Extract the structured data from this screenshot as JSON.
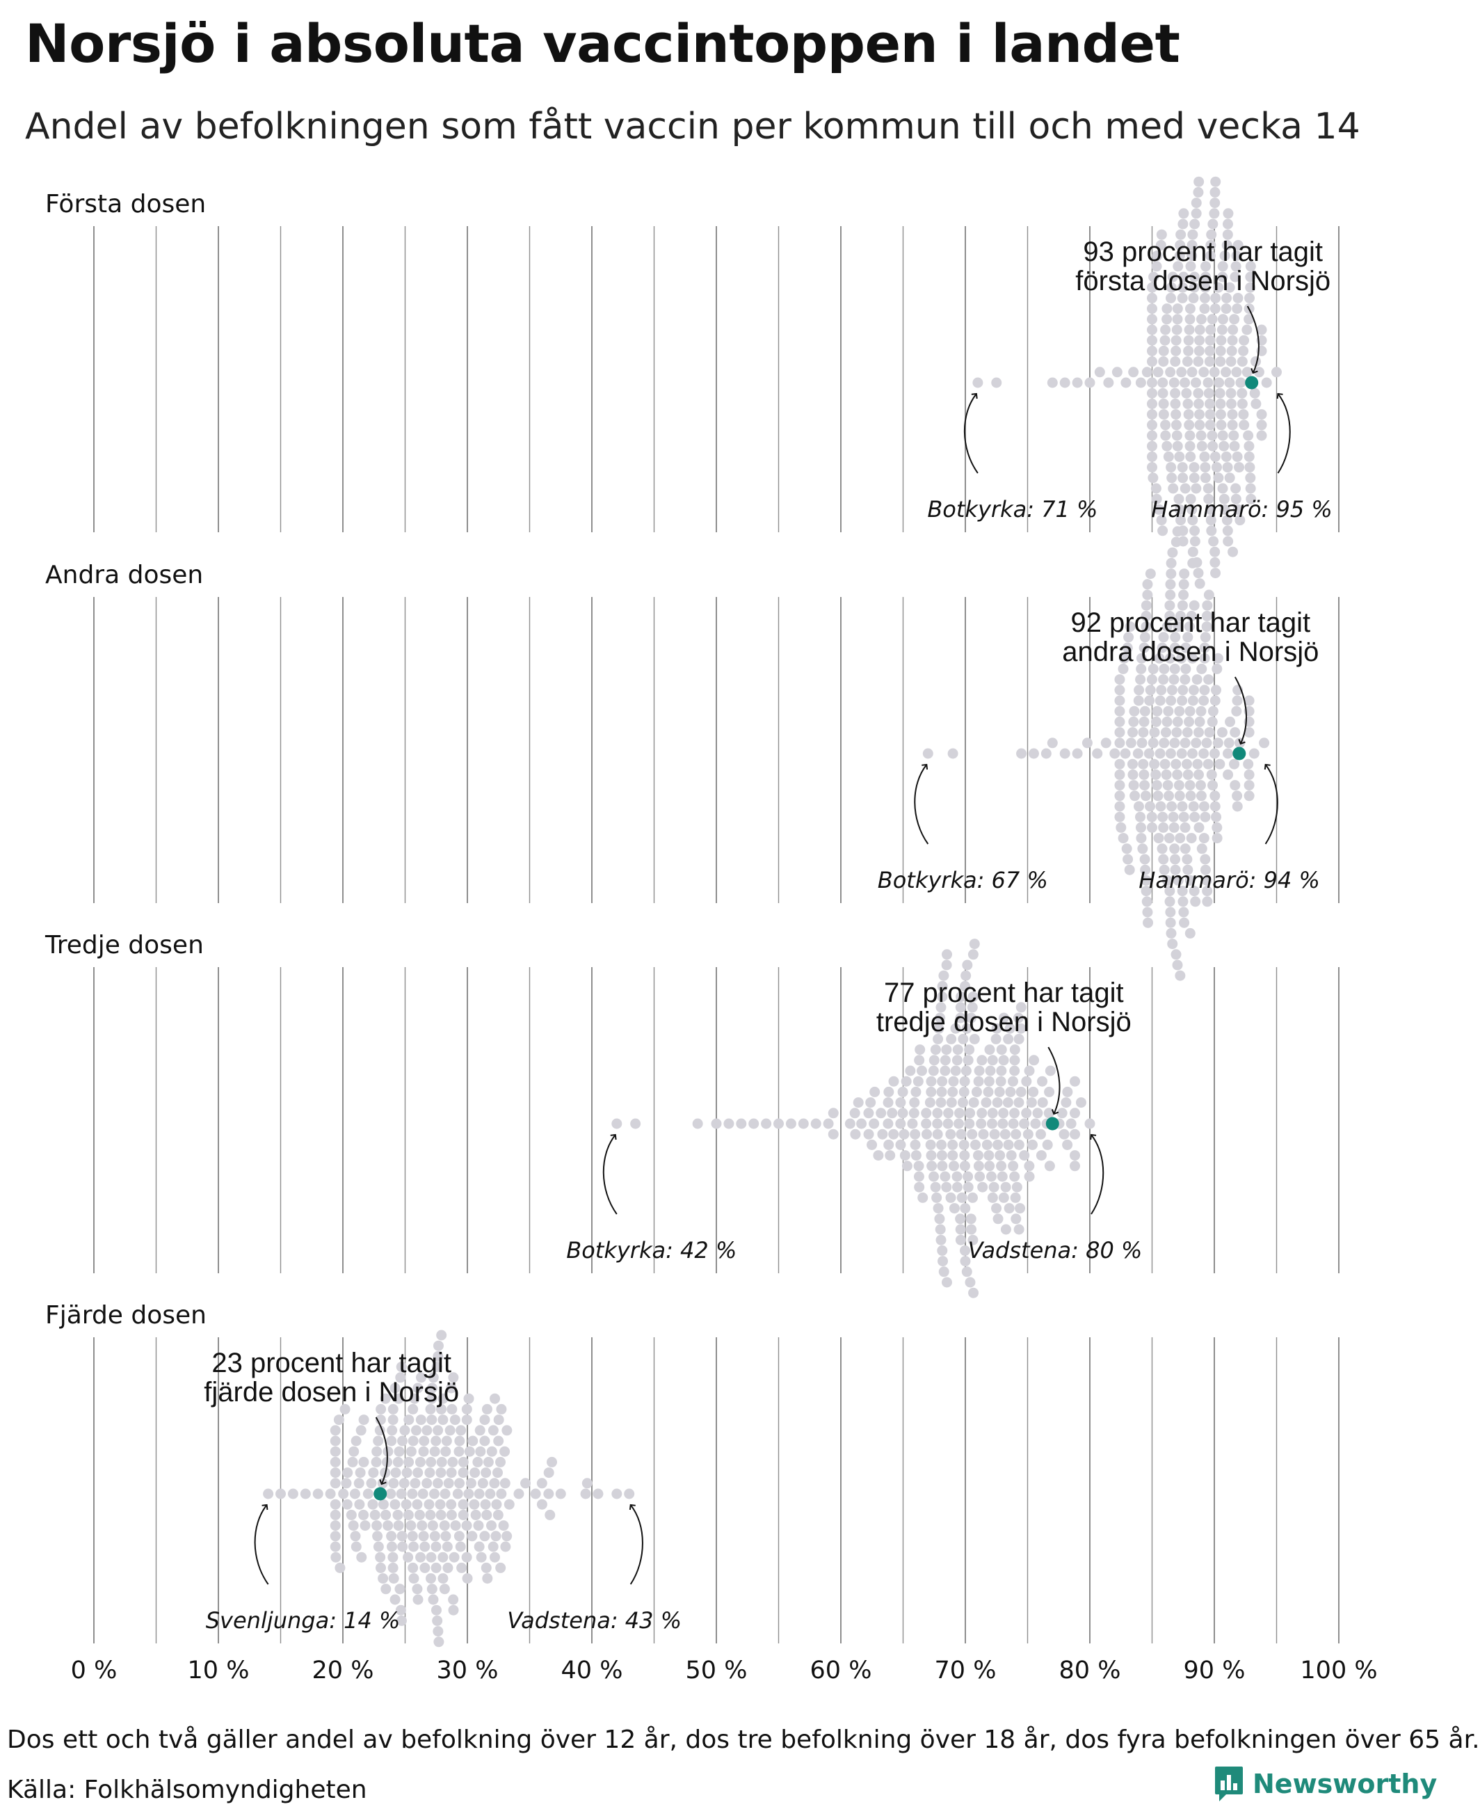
{
  "header": {
    "title": "Norsjö i absoluta vaccintoppen i landet",
    "subtitle": "Andel av befolkningen som fått vaccin per kommun till och med vecka 14"
  },
  "footer": {
    "note": "Dos ett och två gäller andel av befolkning över 12 år, dos tre befolkning över 18 år, dos fyra befolkningen över 65 år.",
    "source": "Källa: Folkhälsomyndigheten",
    "brand": "Newsworthy"
  },
  "colors": {
    "dot": "#d3d2d9",
    "highlight": "#11897a",
    "grid": "#8e8e8e",
    "brand": "#1f8a7a"
  },
  "chart_data": {
    "type": "scatter",
    "subtype": "beeswarm",
    "xlim": [
      0,
      100
    ],
    "x_ticks": [
      0,
      10,
      20,
      30,
      40,
      50,
      60,
      70,
      80,
      90,
      100
    ],
    "x_tick_labels": [
      "0 %",
      "10 %",
      "20 %",
      "30 %",
      "40 %",
      "50 %",
      "60 %",
      "70 %",
      "80 %",
      "90 %",
      "100 %"
    ],
    "grid": true,
    "panels": [
      {
        "name": "Första dosen",
        "highlight": {
          "label": "Norsjö",
          "value": 93,
          "annotation": [
            "93 procent har tagit",
            "första dosen i Norsjö"
          ]
        },
        "min": {
          "label": "Botkyrka: 71 %",
          "value": 71
        },
        "max": {
          "label": "Hammarö: 95 %",
          "value": 95
        },
        "distribution": {
          "center": 89,
          "spread": 2.6,
          "low_tail": [
            71,
            72.5,
            77,
            78,
            79,
            80,
            80.8,
            81.5,
            82.2,
            82.9,
            83.5,
            84.1,
            84.6
          ],
          "high_tail": [
            94.2,
            95
          ]
        }
      },
      {
        "name": "Andra dosen",
        "highlight": {
          "label": "Norsjö",
          "value": 92,
          "annotation": [
            "92 procent har tagit",
            "andra dosen i Norsjö"
          ]
        },
        "min": {
          "label": "Botkyrka: 67 %",
          "value": 67
        },
        "max": {
          "label": "Hammarö: 94 %",
          "value": 94
        },
        "distribution": {
          "center": 87,
          "spread": 2.8,
          "low_tail": [
            67,
            69,
            74.5,
            75.5,
            76.5,
            77,
            78,
            79,
            79.8,
            80.6,
            81.3,
            82
          ],
          "high_tail": [
            93.2,
            94
          ]
        }
      },
      {
        "name": "Tredje dosen",
        "highlight": {
          "label": "Norsjö",
          "value": 77,
          "annotation": [
            "77 procent har tagit",
            "tredje dosen i Norsjö"
          ]
        },
        "min": {
          "label": "Botkyrka: 42 %",
          "value": 42
        },
        "max": {
          "label": "Vadstena: 80 %",
          "value": 80
        },
        "distribution": {
          "center": 70,
          "spread": 4.2,
          "low_tail": [
            42,
            43.5,
            48.5,
            50,
            51,
            52,
            53,
            54,
            55,
            56,
            57,
            58,
            59
          ],
          "high_tail": [
            78.5,
            79.3,
            80
          ]
        }
      },
      {
        "name": "Fjärde dosen",
        "highlight": {
          "label": "Norsjö",
          "value": 23,
          "annotation": [
            "23 procent har tagit",
            "fjärde dosen i Norsjö"
          ]
        },
        "min": {
          "label": "Svenljunga: 14 %",
          "value": 14
        },
        "max": {
          "label": "Vadstena: 43 %",
          "value": 43
        },
        "distribution": {
          "center": 27,
          "spread": 4.0,
          "low_tail": [
            14,
            15,
            16,
            17,
            18,
            19
          ],
          "high_tail": [
            36,
            37.5,
            39.5,
            40.5,
            42,
            43
          ]
        }
      }
    ]
  }
}
